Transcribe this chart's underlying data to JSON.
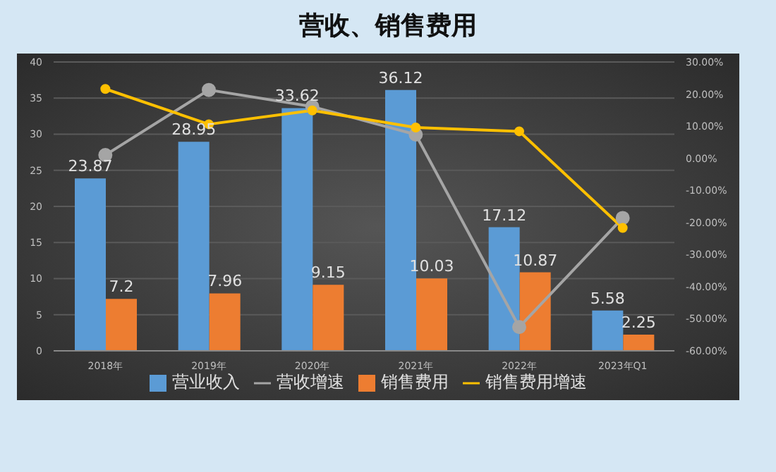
{
  "chart_data": {
    "type": "bar",
    "title": "营收、销售费用",
    "categories": [
      "2018年",
      "2019年",
      "2020年",
      "2021年",
      "2022年",
      "2023年Q1"
    ],
    "series": [
      {
        "name": "营业收入",
        "color": "#5b9bd5",
        "values": [
          23.87,
          28.95,
          33.62,
          36.12,
          17.12,
          5.58
        ],
        "value_labels": [
          "23.87",
          "28.95",
          "33.62",
          "36.12",
          "17.12",
          "5.58"
        ]
      },
      {
        "name": "销售费用",
        "color": "#ed7d31",
        "values": [
          7.2,
          7.96,
          9.15,
          10.03,
          10.87,
          2.25
        ],
        "value_labels": [
          "7.2",
          "7.96",
          "9.15",
          "10.03",
          "10.87",
          "2.25"
        ]
      },
      {
        "name": "营收增速",
        "type": "line",
        "axis": "y2",
        "color": "#a5a5a5",
        "values": [
          1,
          21.3,
          16.1,
          7.4,
          -52.6,
          -18.6
        ]
      },
      {
        "name": "销售费用增速",
        "type": "line",
        "axis": "y2",
        "color": "#ffc000",
        "values": [
          21.6,
          10.6,
          14.9,
          9.6,
          8.4,
          -21.7
        ]
      }
    ],
    "ylim": [
      0,
      40
    ],
    "yticks": [
      0,
      5,
      10,
      15,
      20,
      25,
      30,
      35,
      40
    ],
    "y2lim": [
      -60,
      30
    ],
    "y2ticks": [
      {
        "value": 30,
        "label": "30.00%"
      },
      {
        "value": 20,
        "label": "20.00%"
      },
      {
        "value": 10,
        "label": "10.00%"
      },
      {
        "value": 0,
        "label": "0.00%"
      },
      {
        "value": -10,
        "label": "-10.00%"
      },
      {
        "value": -20,
        "label": "-20.00%"
      },
      {
        "value": -30,
        "label": "-30.00%"
      },
      {
        "value": -40,
        "label": "-40.00%"
      },
      {
        "value": -50,
        "label": "-50.00%"
      },
      {
        "value": -60,
        "label": "-60.00%"
      }
    ],
    "grid": "y",
    "legend": "bottom",
    "marker": "circle"
  }
}
